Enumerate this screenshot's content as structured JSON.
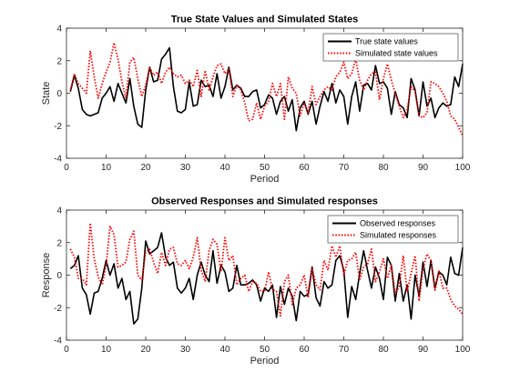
{
  "chart_data": [
    {
      "type": "line",
      "title": "True State Values and Simulated States",
      "xlabel": "Period",
      "ylabel": "State",
      "xlim": [
        0,
        100
      ],
      "ylim": [
        -4,
        4
      ],
      "xticks": [
        "0",
        "10",
        "20",
        "30",
        "40",
        "50",
        "60",
        "70",
        "80",
        "90",
        "100"
      ],
      "yticks": [
        "4",
        "2",
        "0",
        "-2",
        "-4"
      ],
      "legend_position": "top-right",
      "grid": false,
      "series": [
        {
          "name": "True state values",
          "color": "#000000",
          "style": "solid",
          "x": [
            1,
            2,
            3,
            4,
            5,
            6,
            7,
            8,
            9,
            10,
            11,
            12,
            13,
            14,
            15,
            16,
            17,
            18,
            19,
            20,
            21,
            22,
            23,
            24,
            25,
            26,
            27,
            28,
            29,
            30,
            31,
            32,
            33,
            34,
            35,
            36,
            37,
            38,
            39,
            40,
            41,
            42,
            43,
            44,
            45,
            46,
            47,
            48,
            49,
            50,
            51,
            52,
            53,
            54,
            55,
            56,
            57,
            58,
            59,
            60,
            61,
            62,
            63,
            64,
            65,
            66,
            67,
            68,
            69,
            70,
            71,
            72,
            73,
            74,
            75,
            76,
            77,
            78,
            79,
            80,
            81,
            82,
            83,
            84,
            85,
            86,
            87,
            88,
            89,
            90,
            91,
            92,
            93,
            94,
            95,
            96,
            97,
            98,
            99,
            100
          ],
          "values": [
            0.1,
            1.1,
            0.3,
            -1.0,
            -1.3,
            -1.4,
            -1.3,
            -1.2,
            -0.3,
            0.0,
            0.4,
            -0.5,
            0.6,
            0.0,
            -0.6,
            0.9,
            -0.8,
            -1.9,
            -2.1,
            0.2,
            1.6,
            0.7,
            0.8,
            2.1,
            2.4,
            2.8,
            0.4,
            -1.1,
            -1.2,
            -1.0,
            0.7,
            -0.8,
            -0.7,
            0.8,
            0.4,
            0.5,
            -0.2,
            1.2,
            -0.3,
            0.4,
            1.6,
            0.2,
            0.5,
            0.3,
            -0.2,
            -0.2,
            0.1,
            0.2,
            -0.9,
            -0.7,
            -0.1,
            -0.3,
            -1.3,
            -0.5,
            -0.2,
            -1.1,
            -0.4,
            -2.3,
            -0.9,
            -0.5,
            -1.3,
            -0.5,
            -1.9,
            -0.8,
            0.1,
            -0.5,
            0.6,
            -0.6,
            0.2,
            -0.2,
            -1.9,
            -0.2,
            0.7,
            -1.1,
            0.5,
            0.6,
            0.2,
            1.7,
            0.6,
            0.7,
            0.3,
            -1.3,
            0.1,
            -0.7,
            -0.9,
            -1.5,
            0.9,
            0.2,
            -1.4,
            0.7,
            -0.8,
            -0.3,
            -1.5,
            -0.9,
            -0.6,
            -0.8,
            -0.7,
            1.0,
            0.4,
            1.8
          ]
        },
        {
          "name": "Simulated state values",
          "color": "#ff0000",
          "style": "dotted",
          "x": [
            1,
            2,
            3,
            4,
            5,
            6,
            7,
            8,
            9,
            10,
            11,
            12,
            13,
            14,
            15,
            16,
            17,
            18,
            19,
            20,
            21,
            22,
            23,
            24,
            25,
            26,
            27,
            28,
            29,
            30,
            31,
            32,
            33,
            34,
            35,
            36,
            37,
            38,
            39,
            40,
            41,
            42,
            43,
            44,
            45,
            46,
            47,
            48,
            49,
            50,
            51,
            52,
            53,
            54,
            55,
            56,
            57,
            58,
            59,
            60,
            61,
            62,
            63,
            64,
            65,
            66,
            67,
            68,
            69,
            70,
            71,
            72,
            73,
            74,
            75,
            76,
            77,
            78,
            79,
            80,
            81,
            82,
            83,
            84,
            85,
            86,
            87,
            88,
            89,
            90,
            91,
            92,
            93,
            94,
            95,
            96,
            97,
            98,
            99,
            100
          ],
          "values": [
            0.2,
            1.2,
            0.6,
            0.3,
            0.0,
            2.6,
            1.0,
            -0.3,
            0.6,
            1.3,
            1.9,
            3.1,
            2.1,
            0.7,
            -0.3,
            1.9,
            2.2,
            0.9,
            -0.2,
            0.5,
            1.6,
            1.1,
            1.3,
            0.6,
            1.3,
            1.6,
            1.2,
            1.0,
            1.1,
            0.6,
            0.8,
            0.4,
            1.4,
            -0.2,
            1.4,
            0.2,
            1.0,
            1.7,
            1.8,
            1.2,
            1.5,
            -0.2,
            0.5,
            0.2,
            -0.6,
            -1.7,
            -1.6,
            -0.6,
            -1.6,
            -0.8,
            -0.5,
            0.6,
            -0.2,
            0.6,
            -1.6,
            1.0,
            0.3,
            0.0,
            -1.4,
            -0.6,
            -1.2,
            0.4,
            -0.7,
            -0.2,
            0.2,
            0.4,
            0.2,
            1.0,
            1.3,
            1.9,
            0.9,
            1.2,
            2.1,
            0.8,
            0.2,
            0.8,
            1.2,
            1.3,
            -0.4,
            0.9,
            1.8,
            0.8,
            0.0,
            -0.8,
            -1.5,
            -1.0,
            0.4,
            0.1,
            -1.4,
            -1.5,
            -1.2,
            0.7,
            0.6,
            0.4,
            0.0,
            -0.5,
            -1.4,
            -1.6,
            -2.1,
            -2.6
          ]
        }
      ]
    },
    {
      "type": "line",
      "title": "Observed Responses and Simulated responses",
      "xlabel": "Period",
      "ylabel": "Response",
      "xlim": [
        0,
        100
      ],
      "ylim": [
        -4,
        4
      ],
      "xticks": [
        "0",
        "10",
        "20",
        "30",
        "40",
        "50",
        "60",
        "70",
        "80",
        "90",
        "100"
      ],
      "yticks": [
        "4",
        "2",
        "0",
        "-2",
        "-4"
      ],
      "legend_position": "top-right",
      "grid": false,
      "series": [
        {
          "name": "Observed responses",
          "color": "#000000",
          "style": "solid",
          "x": [
            1,
            2,
            3,
            4,
            5,
            6,
            7,
            8,
            9,
            10,
            11,
            12,
            13,
            14,
            15,
            16,
            17,
            18,
            19,
            20,
            21,
            22,
            23,
            24,
            25,
            26,
            27,
            28,
            29,
            30,
            31,
            32,
            33,
            34,
            35,
            36,
            37,
            38,
            39,
            40,
            41,
            42,
            43,
            44,
            45,
            46,
            47,
            48,
            49,
            50,
            51,
            52,
            53,
            54,
            55,
            56,
            57,
            58,
            59,
            60,
            61,
            62,
            63,
            64,
            65,
            66,
            67,
            68,
            69,
            70,
            71,
            72,
            73,
            74,
            75,
            76,
            77,
            78,
            79,
            80,
            81,
            82,
            83,
            84,
            85,
            86,
            87,
            88,
            89,
            90,
            91,
            92,
            93,
            94,
            95,
            96,
            97,
            98,
            99,
            100
          ],
          "values": [
            0.4,
            0.6,
            1.2,
            -0.8,
            -1.2,
            -2.4,
            -1.1,
            -1.0,
            -0.2,
            0.9,
            0.0,
            0.7,
            -0.8,
            -0.2,
            -1.5,
            -1.0,
            -3.0,
            -2.7,
            -0.8,
            2.1,
            1.3,
            1.5,
            1.7,
            2.6,
            1.1,
            0.6,
            0.8,
            -0.8,
            -1.1,
            -0.8,
            -0.2,
            -1.5,
            0.0,
            0.8,
            0.0,
            -0.4,
            1.5,
            -0.5,
            0.6,
            0.2,
            -1.0,
            -0.8,
            0.6,
            -0.6,
            -0.6,
            -0.5,
            -0.3,
            -0.6,
            -1.6,
            -0.8,
            -1.0,
            -0.6,
            -2.6,
            -0.7,
            -1.8,
            -0.8,
            -1.3,
            -2.8,
            -1.0,
            -1.3,
            -1.2,
            0.5,
            -1.4,
            -1.9,
            -0.4,
            -0.8,
            -0.6,
            0.9,
            1.2,
            0.3,
            -2.6,
            -0.7,
            -1.5,
            0.1,
            1.5,
            0.3,
            -0.8,
            0.5,
            -0.2,
            -1.5,
            1.1,
            0.6,
            -1.6,
            0.1,
            -1.6,
            -0.6,
            -2.7,
            0.0,
            -1.3,
            0.8,
            -0.7,
            0.9,
            -0.8,
            0.2,
            0.0,
            -0.6,
            1.1,
            0.1,
            0.0,
            1.7
          ]
        },
        {
          "name": "Simulated responses",
          "color": "#ff0000",
          "style": "dotted",
          "x": [
            1,
            2,
            3,
            4,
            5,
            6,
            7,
            8,
            9,
            10,
            11,
            12,
            13,
            14,
            15,
            16,
            17,
            18,
            19,
            20,
            21,
            22,
            23,
            24,
            25,
            26,
            27,
            28,
            29,
            30,
            31,
            32,
            33,
            34,
            35,
            36,
            37,
            38,
            39,
            40,
            41,
            42,
            43,
            44,
            45,
            46,
            47,
            48,
            49,
            50,
            51,
            52,
            53,
            54,
            55,
            56,
            57,
            58,
            59,
            60,
            61,
            62,
            63,
            64,
            65,
            66,
            67,
            68,
            69,
            70,
            71,
            72,
            73,
            74,
            75,
            76,
            77,
            78,
            79,
            80,
            81,
            82,
            83,
            84,
            85,
            86,
            87,
            88,
            89,
            90,
            91,
            92,
            93,
            94,
            95,
            96,
            97,
            98,
            99,
            100
          ],
          "values": [
            1.6,
            1.1,
            -0.2,
            -0.2,
            -0.6,
            3.2,
            1.0,
            -0.1,
            -0.6,
            0.6,
            3.0,
            2.5,
            0.5,
            0.6,
            0.8,
            2.2,
            2.7,
            0.0,
            -0.3,
            1.4,
            1.6,
            0.8,
            0.1,
            1.4,
            0.6,
            1.6,
            1.7,
            0.7,
            0.6,
            0.9,
            0.4,
            1.1,
            2.3,
            0.3,
            -0.4,
            1.5,
            2.2,
            1.9,
            0.2,
            2.3,
            0.9,
            1.2,
            -0.6,
            -0.2,
            0.0,
            -1.0,
            -0.4,
            -0.5,
            -1.0,
            -1.0,
            0.2,
            -0.9,
            -1.0,
            -2.5,
            -0.4,
            0.0,
            -1.8,
            -0.8,
            -0.6,
            0.0,
            -1.4,
            0.4,
            -0.6,
            -0.9,
            0.9,
            0.3,
            1.8,
            1.1,
            1.8,
            0.0,
            0.9,
            1.0,
            1.4,
            -0.3,
            0.5,
            0.7,
            1.6,
            -0.4,
            0.2,
            1.0,
            -0.2,
            0.6,
            -1.1,
            -0.7,
            1.2,
            -1.0,
            0.1,
            1.2,
            -1.6,
            0.4,
            1.3,
            0.9,
            -1.0,
            0.3,
            -0.8,
            -0.8,
            -1.5,
            -1.9,
            -2.1,
            -2.4
          ]
        }
      ]
    }
  ]
}
